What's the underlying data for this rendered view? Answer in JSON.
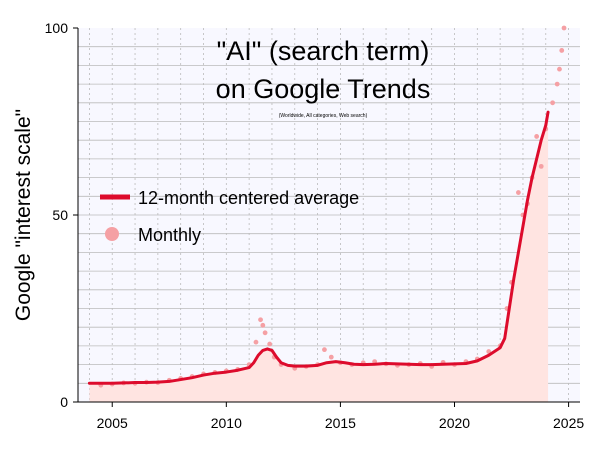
{
  "chart_data": {
    "type": "line",
    "title": "\"AI\" (search term)",
    "title_line2": "on Google Trends",
    "subtitle": "(Worldwide, All categories, Web search)",
    "ylabel": "Google \"interest scale\"",
    "xlabel": "",
    "xlim": [
      2003.5,
      2025.5
    ],
    "ylim": [
      0,
      100
    ],
    "x_ticks": [
      2005,
      2010,
      2015,
      2020,
      2025
    ],
    "y_ticks": [
      0,
      50,
      100
    ],
    "grid": "horizontal-minor-and-vertical-dashed",
    "legend": {
      "placement": "middle-left",
      "entries": [
        {
          "label": "12-month centered average",
          "symbol": "line"
        },
        {
          "label": "Monthly",
          "symbol": "dot"
        }
      ]
    },
    "colors": {
      "average_line": "#dd0b2c",
      "monthly_dots": "#f5a0a4",
      "area_fill": "#ffe4e1",
      "plot_background": "#f8f8ff",
      "grid": "#bbbbbb"
    },
    "series": [
      {
        "name": "12-month centered average",
        "style": "line",
        "points": [
          [
            2004.0,
            5.0
          ],
          [
            2004.5,
            5.0
          ],
          [
            2005.0,
            5.0
          ],
          [
            2005.5,
            5.1
          ],
          [
            2006.0,
            5.2
          ],
          [
            2006.5,
            5.2
          ],
          [
            2007.0,
            5.3
          ],
          [
            2007.5,
            5.5
          ],
          [
            2008.0,
            6.0
          ],
          [
            2008.5,
            6.5
          ],
          [
            2009.0,
            7.2
          ],
          [
            2009.5,
            7.7
          ],
          [
            2010.0,
            8.0
          ],
          [
            2010.5,
            8.5
          ],
          [
            2011.0,
            9.2
          ],
          [
            2011.2,
            10.5
          ],
          [
            2011.4,
            12.5
          ],
          [
            2011.6,
            13.8
          ],
          [
            2011.8,
            14.2
          ],
          [
            2012.0,
            13.8
          ],
          [
            2012.2,
            12.0
          ],
          [
            2012.4,
            10.5
          ],
          [
            2012.7,
            9.8
          ],
          [
            2013.0,
            9.6
          ],
          [
            2013.5,
            9.6
          ],
          [
            2014.0,
            9.8
          ],
          [
            2014.4,
            10.5
          ],
          [
            2014.8,
            10.8
          ],
          [
            2015.2,
            10.5
          ],
          [
            2015.6,
            10.1
          ],
          [
            2016.0,
            10.0
          ],
          [
            2016.5,
            10.1
          ],
          [
            2017.0,
            10.3
          ],
          [
            2017.5,
            10.2
          ],
          [
            2018.0,
            10.1
          ],
          [
            2018.5,
            10.0
          ],
          [
            2019.0,
            10.0
          ],
          [
            2019.5,
            10.1
          ],
          [
            2020.0,
            10.2
          ],
          [
            2020.5,
            10.3
          ],
          [
            2021.0,
            11.0
          ],
          [
            2021.5,
            12.5
          ],
          [
            2022.0,
            14.5
          ],
          [
            2022.2,
            17.0
          ],
          [
            2022.4,
            25.0
          ],
          [
            2022.6,
            33.0
          ],
          [
            2022.8,
            40.0
          ],
          [
            2023.0,
            47.0
          ],
          [
            2023.2,
            54.0
          ],
          [
            2023.4,
            60.0
          ],
          [
            2023.6,
            65.0
          ],
          [
            2023.8,
            70.0
          ],
          [
            2024.0,
            74.0
          ],
          [
            2024.1,
            77.5
          ]
        ]
      },
      {
        "name": "Monthly",
        "style": "dots",
        "points": [
          [
            2004.5,
            4.5
          ],
          [
            2005.0,
            4.8
          ],
          [
            2005.5,
            5.1
          ],
          [
            2006.0,
            5.0
          ],
          [
            2006.5,
            5.3
          ],
          [
            2007.0,
            5.2
          ],
          [
            2007.5,
            5.8
          ],
          [
            2008.0,
            6.3
          ],
          [
            2008.5,
            6.8
          ],
          [
            2009.0,
            7.5
          ],
          [
            2009.5,
            7.9
          ],
          [
            2010.0,
            8.3
          ],
          [
            2010.5,
            8.7
          ],
          [
            2011.0,
            10.0
          ],
          [
            2011.3,
            16.0
          ],
          [
            2011.5,
            22.0
          ],
          [
            2011.6,
            20.5
          ],
          [
            2011.7,
            18.5
          ],
          [
            2011.9,
            15.5
          ],
          [
            2012.1,
            12.0
          ],
          [
            2012.4,
            10.0
          ],
          [
            2013.0,
            9.0
          ],
          [
            2013.5,
            9.5
          ],
          [
            2014.0,
            10.0
          ],
          [
            2014.3,
            14.0
          ],
          [
            2014.6,
            12.0
          ],
          [
            2015.0,
            10.5
          ],
          [
            2015.5,
            10.0
          ],
          [
            2016.0,
            10.5
          ],
          [
            2016.5,
            10.8
          ],
          [
            2017.0,
            10.2
          ],
          [
            2017.5,
            9.8
          ],
          [
            2018.0,
            10.0
          ],
          [
            2018.5,
            10.3
          ],
          [
            2019.0,
            9.5
          ],
          [
            2019.5,
            10.6
          ],
          [
            2020.0,
            10.0
          ],
          [
            2020.5,
            10.8
          ],
          [
            2021.0,
            11.5
          ],
          [
            2021.5,
            13.5
          ],
          [
            2022.0,
            15.0
          ],
          [
            2022.3,
            25.0
          ],
          [
            2022.5,
            32.0
          ],
          [
            2022.8,
            56.0
          ],
          [
            2023.0,
            50.0
          ],
          [
            2023.2,
            53.0
          ],
          [
            2023.4,
            60.0
          ],
          [
            2023.6,
            71.0
          ],
          [
            2023.8,
            63.0
          ],
          [
            2024.0,
            73.0
          ],
          [
            2024.3,
            80.0
          ],
          [
            2024.5,
            85.0
          ],
          [
            2024.6,
            89.0
          ],
          [
            2024.7,
            94.0
          ],
          [
            2024.8,
            100.0
          ]
        ]
      }
    ]
  }
}
